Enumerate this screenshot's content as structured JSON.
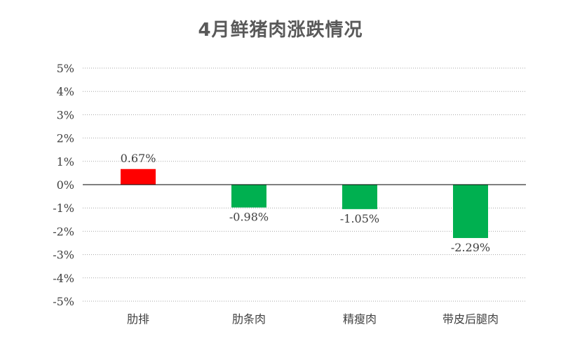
{
  "chart_data": {
    "type": "bar",
    "title": "4月鲜猪肉涨跌情况",
    "categories": [
      "肋排",
      "肋条肉",
      "精瘦肉",
      "带皮后腿肉"
    ],
    "values": [
      0.67,
      -0.98,
      -1.05,
      -2.29
    ],
    "data_labels": [
      "0.67%",
      "-0.98%",
      "-1.05%",
      "-2.29%"
    ],
    "ylim": [
      -5,
      5
    ],
    "yticks": [
      "5%",
      "4%",
      "3%",
      "2%",
      "1%",
      "0%",
      "-1%",
      "-2%",
      "-3%",
      "-4%",
      "-5%"
    ],
    "grid": "horizontal dotted",
    "legend": "none",
    "colors": {
      "positive": "#ff0000",
      "negative": "#00b050",
      "axis": "#000000",
      "grid": "#a6a6a6"
    }
  }
}
